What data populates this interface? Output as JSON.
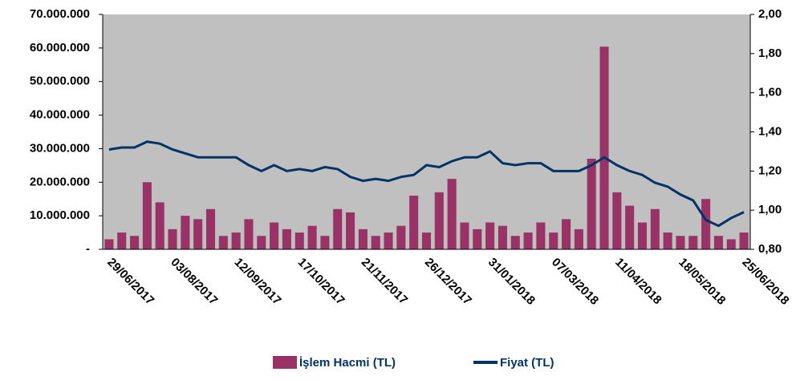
{
  "chart_data": {
    "type": "bar-line",
    "categories": [
      "29/06/2017",
      null,
      null,
      null,
      null,
      "03/08/2017",
      null,
      null,
      null,
      null,
      "12/09/2017",
      null,
      null,
      null,
      null,
      "17/10/2017",
      null,
      null,
      null,
      null,
      "21/11/2017",
      null,
      null,
      null,
      null,
      "26/12/2017",
      null,
      null,
      null,
      null,
      "31/01/2018",
      null,
      null,
      null,
      null,
      "07/03/2018",
      null,
      null,
      null,
      null,
      "11/04/2018",
      null,
      null,
      null,
      null,
      "18/05/2018",
      null,
      null,
      null,
      null,
      "25/06/2018"
    ],
    "series": [
      {
        "name": "İşlem Hacmi (TL)",
        "color": "#993366",
        "axis": "y",
        "values": [
          3000000,
          5000000,
          4000000,
          20000000,
          14000000,
          6000000,
          10000000,
          9000000,
          12000000,
          4000000,
          5000000,
          9000000,
          4000000,
          8000000,
          6000000,
          5000000,
          7000000,
          4000000,
          12000000,
          11000000,
          6000000,
          4000000,
          5000000,
          7000000,
          16000000,
          5000000,
          17000000,
          21000000,
          8000000,
          6000000,
          8000000,
          7000000,
          4000000,
          5000000,
          8000000,
          5000000,
          9000000,
          6000000,
          27000000,
          60400000,
          17000000,
          13000000,
          8000000,
          12000000,
          5000000,
          4000000,
          4000000,
          15000000,
          4000000,
          3000000,
          5000000
        ]
      },
      {
        "name": "Fiyat (TL)",
        "color": "#003366",
        "axis": "y2",
        "values": [
          1.31,
          1.32,
          1.32,
          1.35,
          1.34,
          1.31,
          1.29,
          1.27,
          1.27,
          1.27,
          1.27,
          1.23,
          1.2,
          1.23,
          1.2,
          1.21,
          1.2,
          1.22,
          1.21,
          1.17,
          1.15,
          1.16,
          1.15,
          1.17,
          1.18,
          1.23,
          1.22,
          1.25,
          1.27,
          1.27,
          1.3,
          1.24,
          1.23,
          1.24,
          1.24,
          1.2,
          1.2,
          1.2,
          1.23,
          1.27,
          1.23,
          1.2,
          1.18,
          1.14,
          1.12,
          1.08,
          1.05,
          0.95,
          0.92,
          0.96,
          0.99
        ]
      }
    ],
    "ylim": [
      0,
      70000000
    ],
    "yticks": [
      {
        "value": 0,
        "label": "-"
      },
      {
        "value": 10000000,
        "label": "10.000.000"
      },
      {
        "value": 20000000,
        "label": "20.000.000"
      },
      {
        "value": 30000000,
        "label": "30.000.000"
      },
      {
        "value": 40000000,
        "label": "40.000.000"
      },
      {
        "value": 50000000,
        "label": "50.000.000"
      },
      {
        "value": 60000000,
        "label": "60.000.000"
      },
      {
        "value": 70000000,
        "label": "70.000.000"
      }
    ],
    "y2lim": [
      0.8,
      2.0
    ],
    "y2ticks": [
      {
        "value": 0.8,
        "label": "0,80"
      },
      {
        "value": 1.0,
        "label": "1,00"
      },
      {
        "value": 1.2,
        "label": "1,20"
      },
      {
        "value": 1.4,
        "label": "1,40"
      },
      {
        "value": 1.6,
        "label": "1,60"
      },
      {
        "value": 1.8,
        "label": "1,80"
      },
      {
        "value": 2.0,
        "label": "2,00"
      }
    ],
    "legend": "bottom"
  }
}
